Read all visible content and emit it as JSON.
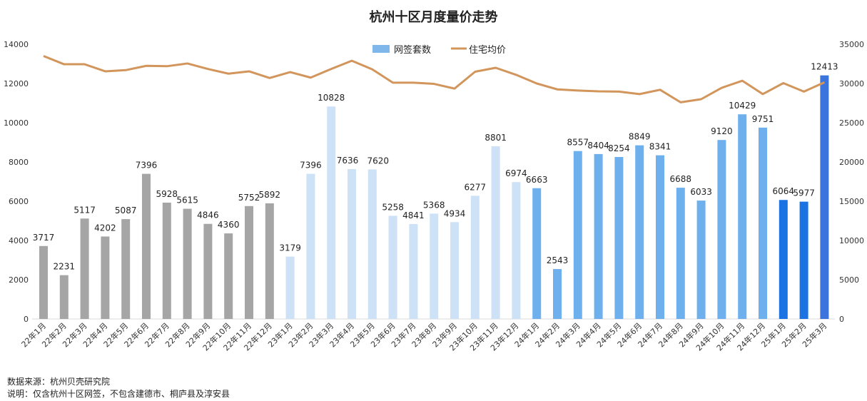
{
  "chart_data": {
    "type": "bar+line",
    "title": "杭州十区月度量价走势",
    "categories": [
      "22年1月",
      "22年2月",
      "22年3月",
      "22年4月",
      "22年5月",
      "22年6月",
      "22年7月",
      "22年8月",
      "22年9月",
      "22年10月",
      "22年11月",
      "22年12月",
      "23年1月",
      "23年2月",
      "23年3月",
      "23年4月",
      "23年5月",
      "23年6月",
      "23年7月",
      "23年8月",
      "23年9月",
      "23年10月",
      "23年11月",
      "23年12月",
      "24年1月",
      "24年2月",
      "24年3月",
      "24年4月",
      "24年5月",
      "24年6月",
      "24年7月",
      "24年8月",
      "24年9月",
      "24年10月",
      "24年11月",
      "24年12月",
      "25年1月",
      "25年2月",
      "25年3月"
    ],
    "series": [
      {
        "name": "网签套数",
        "type": "bar",
        "axis": "left",
        "values": [
          3717,
          2231,
          5117,
          4202,
          5087,
          7396,
          5928,
          5615,
          4846,
          4360,
          5752,
          5892,
          3179,
          7396,
          10828,
          7636,
          7620,
          5258,
          4841,
          5368,
          4934,
          6277,
          8801,
          6974,
          6663,
          2543,
          8557,
          8404,
          8254,
          8849,
          8341,
          6688,
          6033,
          9120,
          10429,
          9751,
          6064,
          5977,
          12413
        ]
      },
      {
        "name": "住宅均价",
        "type": "line",
        "axis": "right",
        "values": [
          33500,
          32450,
          32450,
          31550,
          31700,
          32250,
          32200,
          32550,
          31850,
          31250,
          31550,
          30700,
          31450,
          30750,
          31850,
          32900,
          31800,
          30100,
          30100,
          29950,
          29350,
          31500,
          32000,
          31100,
          30000,
          29250,
          29100,
          29000,
          28970,
          28650,
          29200,
          27600,
          28000,
          29450,
          30350,
          28650,
          30050,
          28970,
          30150
        ]
      }
    ],
    "left_axis": {
      "ylim": [
        0,
        14000
      ],
      "ticks": [
        0,
        2000,
        4000,
        6000,
        8000,
        10000,
        12000,
        14000
      ]
    },
    "right_axis": {
      "ylim": [
        0,
        35000
      ],
      "ticks": [
        0,
        5000,
        10000,
        15000,
        20000,
        25000,
        30000,
        35000
      ]
    },
    "legend_position": "top-center",
    "grid": false,
    "colors": {
      "bar_2022": "#a5a5a5",
      "bar_2023": "#cde2f7",
      "bar_2024": "#6eb0ee",
      "bar_2025": "#1a72e3",
      "bar_last": "#3b74dd",
      "line": "#d2955b",
      "legend_bar": "#7fb7ea"
    }
  },
  "footer": {
    "source": "数据来源：杭州贝壳研究院",
    "note": "说明：仅含杭州十区网签，不包含建德市、桐庐县及淳安县"
  }
}
